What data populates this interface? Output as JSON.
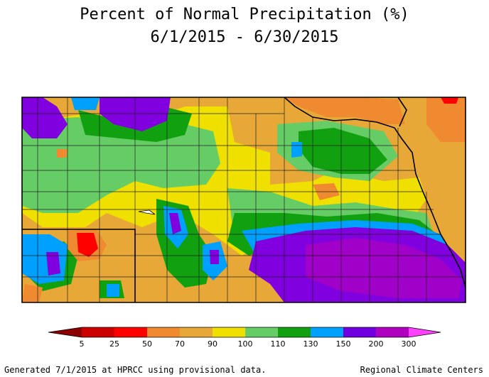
{
  "title": "Percent of Normal Precipitation (%)",
  "subtitle": "6/1/2015 - 6/30/2015",
  "legend": {
    "colors": [
      "#8b0000",
      "#cc0000",
      "#ff0000",
      "#f08a30",
      "#e8a838",
      "#f0e000",
      "#66cc66",
      "#10a010",
      "#00a0ff",
      "#7000e0",
      "#b000c0",
      "#ff40ff"
    ],
    "ticks": [
      "5",
      "25",
      "50",
      "70",
      "90",
      "100",
      "110",
      "130",
      "150",
      "200",
      "300"
    ]
  },
  "footer": {
    "left": "Generated 7/1/2015 at HPRCC using provisional data.",
    "right": "Regional Climate Centers"
  },
  "colors": {
    "orange": "#e8a838",
    "yellow": "#f0e000",
    "lightgreen": "#66cc66",
    "green": "#10a010",
    "blue": "#00a0ff",
    "purple": "#8000e0",
    "magenta": "#a000c8",
    "red": "#ff0000",
    "darkorange": "#f08a30"
  }
}
